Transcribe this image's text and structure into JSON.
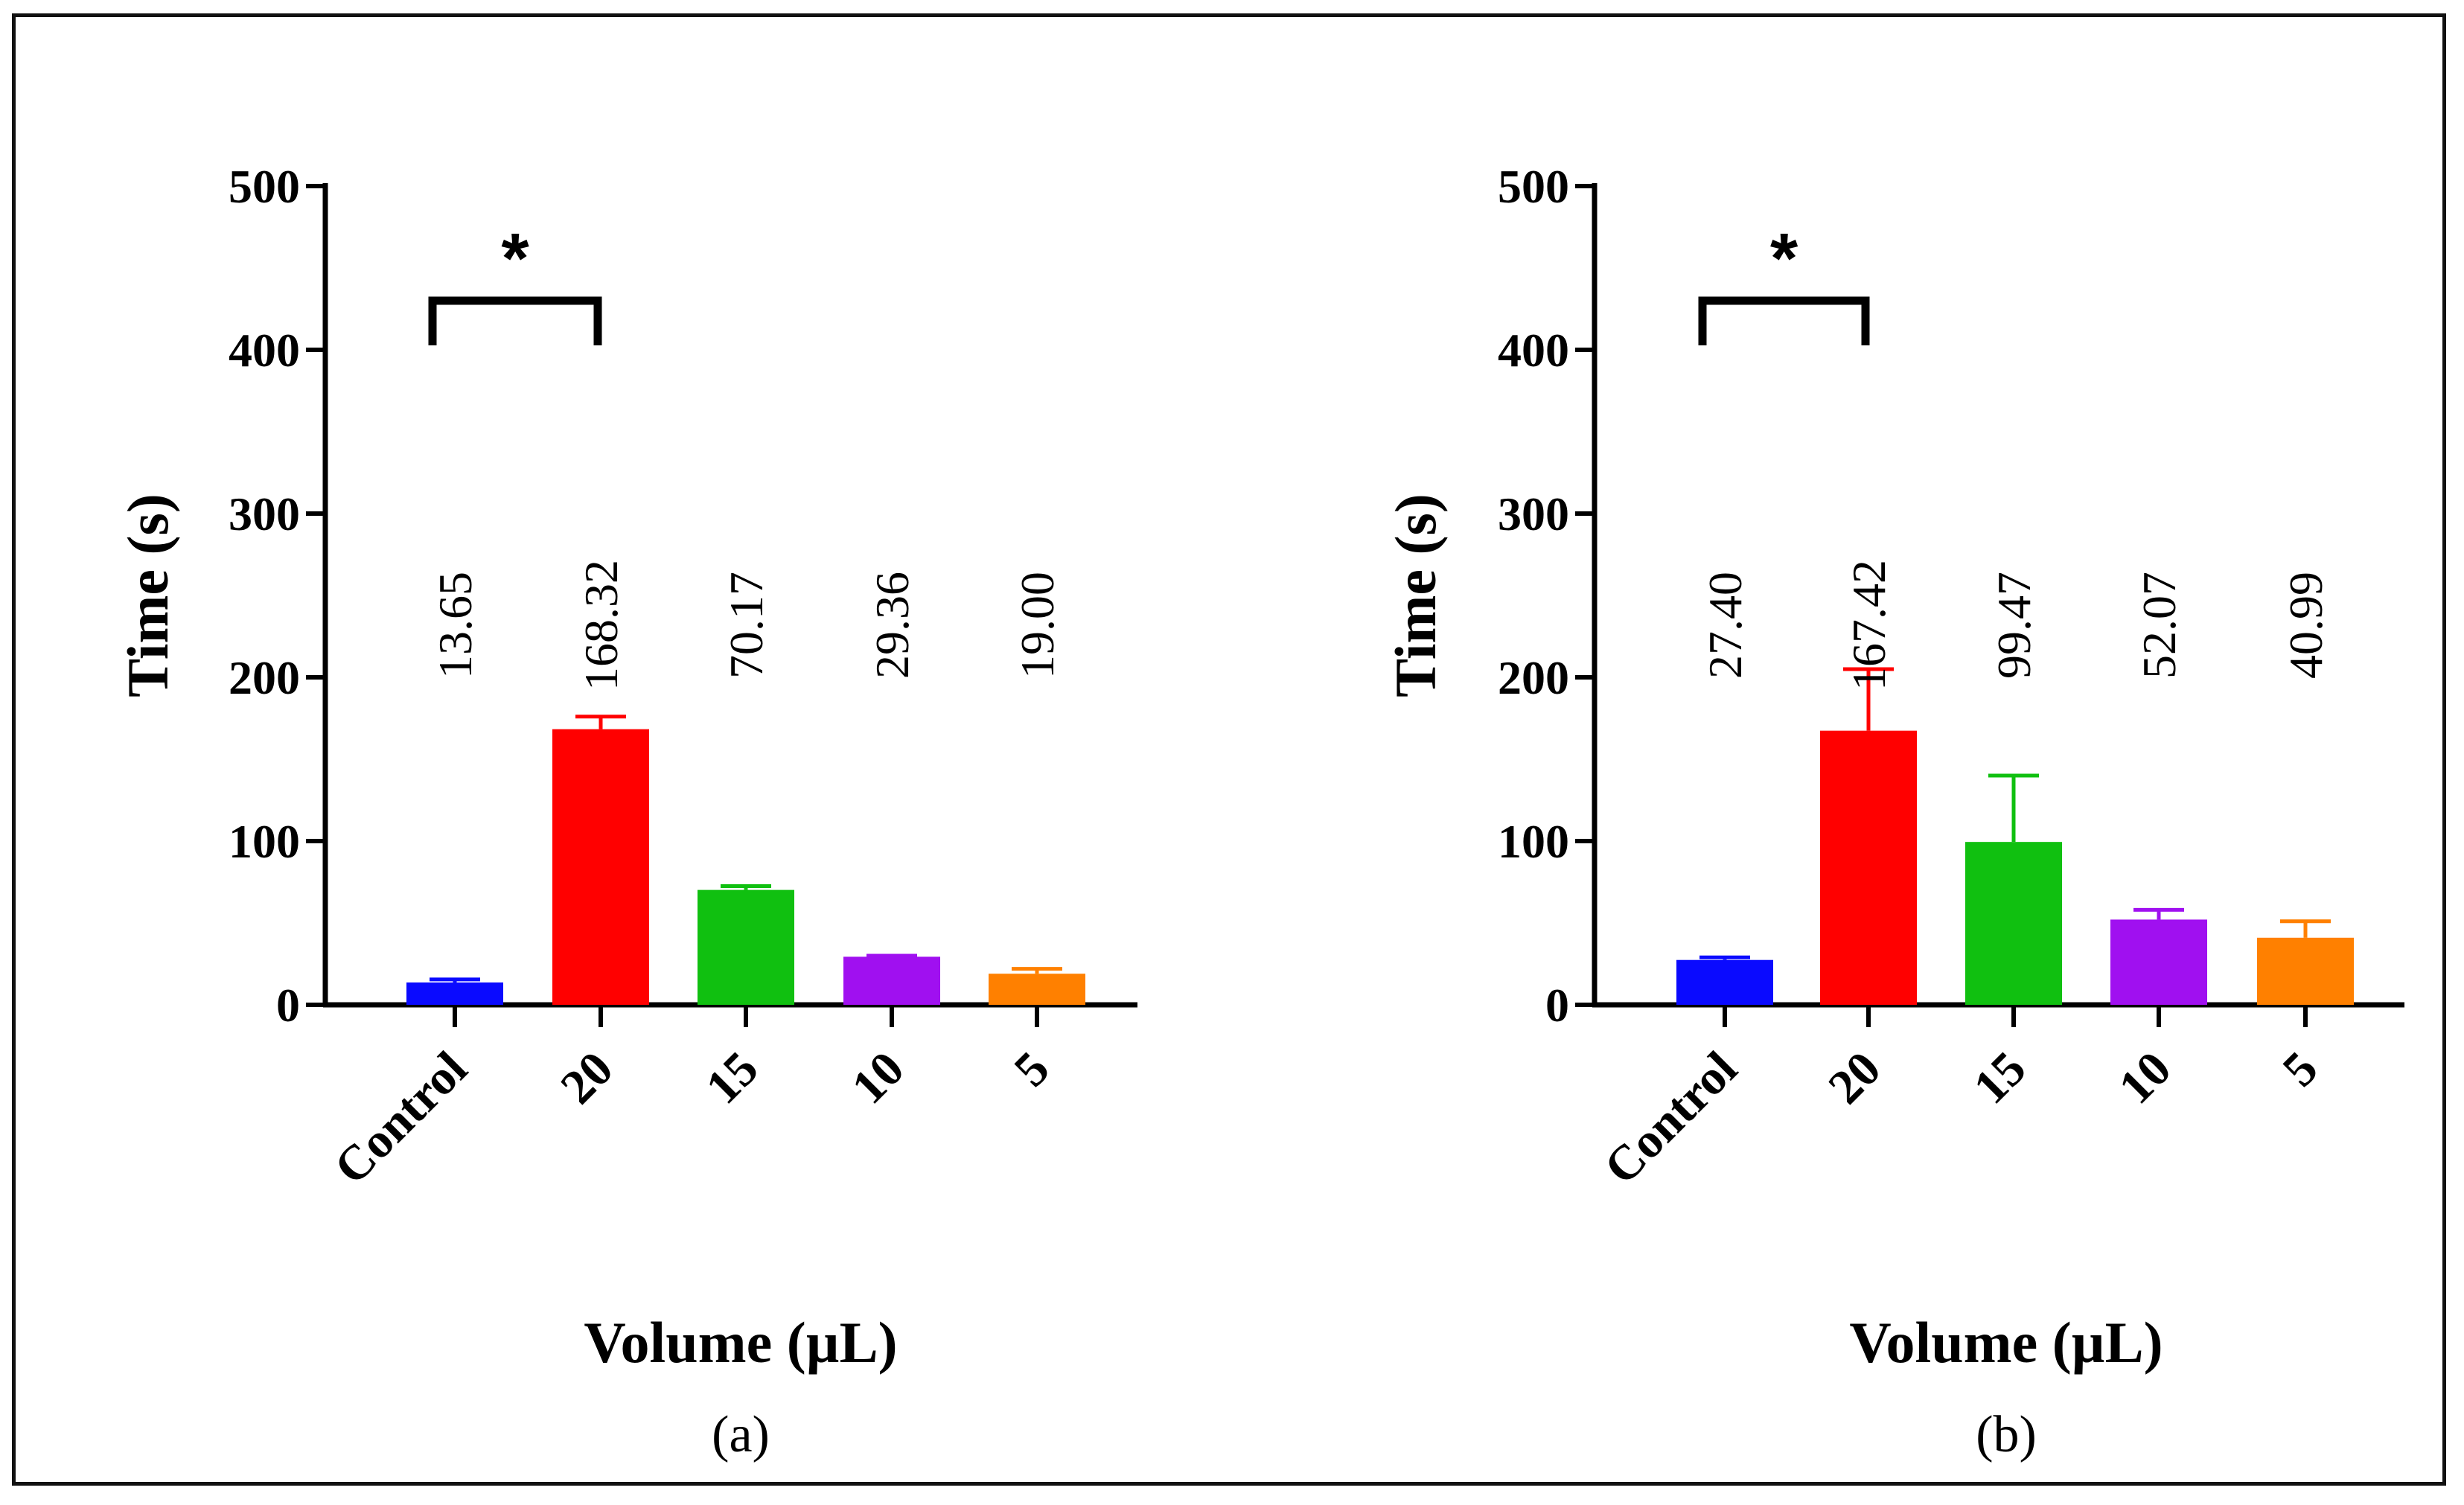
{
  "chart_data": [
    {
      "type": "bar",
      "panel": "(a)",
      "categories": [
        "Control",
        "20",
        "15",
        "10",
        "5"
      ],
      "values": [
        13.65,
        168.32,
        70.17,
        29.36,
        19.0
      ],
      "value_labels": [
        "13.65",
        "168.32",
        "70.17",
        "29.36",
        "19.00"
      ],
      "error_upper": [
        15.5,
        176,
        72.5,
        30,
        22
      ],
      "colors": [
        "#0a0aff",
        "#ff0000",
        "#10c010",
        "#a010f0",
        "#ff8000"
      ],
      "xlabel": "Volume (µL)",
      "ylabel": "Time (s)",
      "ylim": [
        0,
        500
      ],
      "yticks": [
        0,
        100,
        200,
        300,
        400,
        500
      ],
      "grid": false,
      "significance": {
        "from": "Control",
        "to": "20",
        "label": "*"
      }
    },
    {
      "type": "bar",
      "panel": "(b)",
      "categories": [
        "Control",
        "20",
        "15",
        "10",
        "5"
      ],
      "values": [
        27.4,
        167.42,
        99.47,
        52.07,
        40.99
      ],
      "value_labels": [
        "27.40",
        "167.42",
        "99.47",
        "52.07",
        "40.99"
      ],
      "error_upper": [
        29,
        205,
        140,
        58,
        51
      ],
      "colors": [
        "#0a0aff",
        "#ff0000",
        "#10c010",
        "#a010f0",
        "#ff8000"
      ],
      "xlabel": "Volume (µL)",
      "ylabel": "Time (s)",
      "ylim": [
        0,
        500
      ],
      "yticks": [
        0,
        100,
        200,
        300,
        400,
        500
      ],
      "grid": false,
      "significance": {
        "from": "Control",
        "to": "20",
        "label": "*"
      }
    }
  ]
}
